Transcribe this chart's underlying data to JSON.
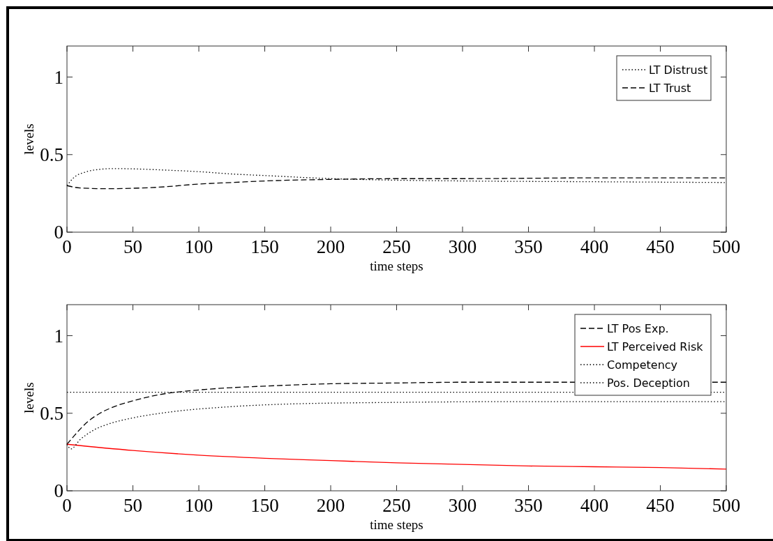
{
  "chart_data": [
    {
      "type": "line",
      "xlabel": "time steps",
      "ylabel": "levels",
      "xlim": [
        0,
        500
      ],
      "xticks": [
        0,
        50,
        100,
        150,
        200,
        250,
        300,
        350,
        400,
        450,
        500
      ],
      "ylim": [
        0,
        1.2
      ],
      "yticks": [
        0,
        0.5,
        1
      ],
      "legend": "top right",
      "series": [
        {
          "name": "LT Distrust",
          "color": "#000000",
          "line_style": "dotted",
          "x": [
            0,
            5,
            15,
            25,
            35,
            50,
            75,
            100,
            125,
            150,
            200,
            250,
            300,
            400,
            500
          ],
          "values": [
            0.3,
            0.35,
            0.39,
            0.405,
            0.41,
            0.408,
            0.4,
            0.39,
            0.375,
            0.365,
            0.345,
            0.335,
            0.33,
            0.325,
            0.32
          ]
        },
        {
          "name": "LT Trust",
          "color": "#000000",
          "line_style": "dashed",
          "x": [
            0,
            10,
            30,
            50,
            70,
            100,
            125,
            150,
            200,
            250,
            300,
            400,
            500
          ],
          "values": [
            0.3,
            0.285,
            0.28,
            0.283,
            0.29,
            0.31,
            0.32,
            0.33,
            0.34,
            0.345,
            0.345,
            0.35,
            0.35
          ]
        }
      ]
    },
    {
      "type": "line",
      "xlabel": "time steps",
      "ylabel": "levels",
      "xlim": [
        0,
        500
      ],
      "xticks": [
        0,
        50,
        100,
        150,
        200,
        250,
        300,
        350,
        400,
        450,
        500
      ],
      "ylim": [
        0,
        1.2
      ],
      "yticks": [
        0,
        0.5,
        1
      ],
      "legend": "top right",
      "series": [
        {
          "name": "LT Pos Exp.",
          "color": "#000000",
          "line_style": "dashed",
          "x": [
            0,
            5,
            15,
            25,
            35,
            50,
            70,
            100,
            125,
            150,
            200,
            250,
            300,
            400,
            500
          ],
          "values": [
            0.3,
            0.35,
            0.44,
            0.5,
            0.54,
            0.58,
            0.62,
            0.65,
            0.665,
            0.675,
            0.69,
            0.695,
            0.7,
            0.7,
            0.7
          ]
        },
        {
          "name": "LT Perceived Risk",
          "color": "#ff0000",
          "line_style": "solid",
          "x": [
            0,
            50,
            100,
            150,
            200,
            250,
            300,
            350,
            400,
            450,
            500
          ],
          "values": [
            0.3,
            0.26,
            0.23,
            0.21,
            0.195,
            0.18,
            0.17,
            0.16,
            0.155,
            0.15,
            0.14
          ]
        },
        {
          "name": "Competency",
          "color": "#000000",
          "line_style": "dotted",
          "x": [
            0,
            500
          ],
          "values": [
            0.635,
            0.635
          ]
        },
        {
          "name": "Pos. Deception",
          "color": "#000000",
          "line_style": "dotted",
          "x": [
            0,
            3,
            10,
            20,
            35,
            50,
            80,
            120,
            170,
            250,
            350,
            500
          ],
          "values": [
            0.3,
            0.27,
            0.33,
            0.39,
            0.44,
            0.47,
            0.51,
            0.54,
            0.56,
            0.57,
            0.575,
            0.575
          ]
        }
      ]
    }
  ]
}
